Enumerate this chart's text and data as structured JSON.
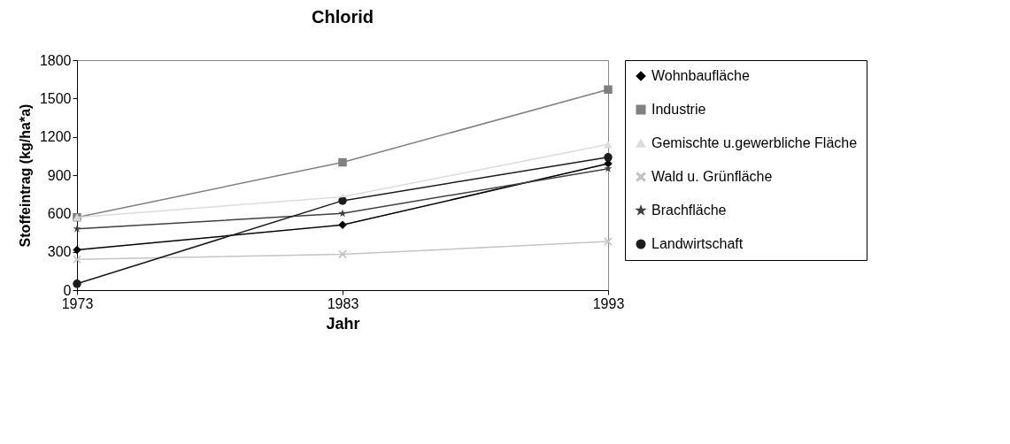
{
  "chart_data": {
    "type": "line",
    "title": "Chlorid",
    "xlabel": "Jahr",
    "ylabel": "Stoffeintrag (kg/ha*a)",
    "categories": [
      "1973",
      "1983",
      "1993"
    ],
    "ylim": [
      0,
      1800
    ],
    "yticks": [
      0,
      300,
      600,
      900,
      1200,
      1500,
      1800
    ],
    "grid": false,
    "legend": "right",
    "series": [
      {
        "name": "Wohnbaufläche",
        "color": "#000000",
        "marker": "diamond",
        "values": [
          315,
          510,
          990
        ]
      },
      {
        "name": "Industrie",
        "color": "#808080",
        "marker": "square",
        "values": [
          570,
          1000,
          1570
        ]
      },
      {
        "name": "Gemischte u.gewerbliche Fläche",
        "color": "#dcdcdc",
        "marker": "triangle",
        "values": [
          570,
          730,
          1140
        ]
      },
      {
        "name": "Wald u. Grünfläche",
        "color": "#c4c4c4",
        "marker": "cross",
        "values": [
          240,
          280,
          380
        ]
      },
      {
        "name": "Brachfläche",
        "color": "#404040",
        "marker": "star",
        "values": [
          480,
          600,
          950
        ]
      },
      {
        "name": "Landwirtschaft",
        "color": "#1c1c1c",
        "marker": "circle",
        "values": [
          50,
          700,
          1040
        ]
      }
    ]
  }
}
